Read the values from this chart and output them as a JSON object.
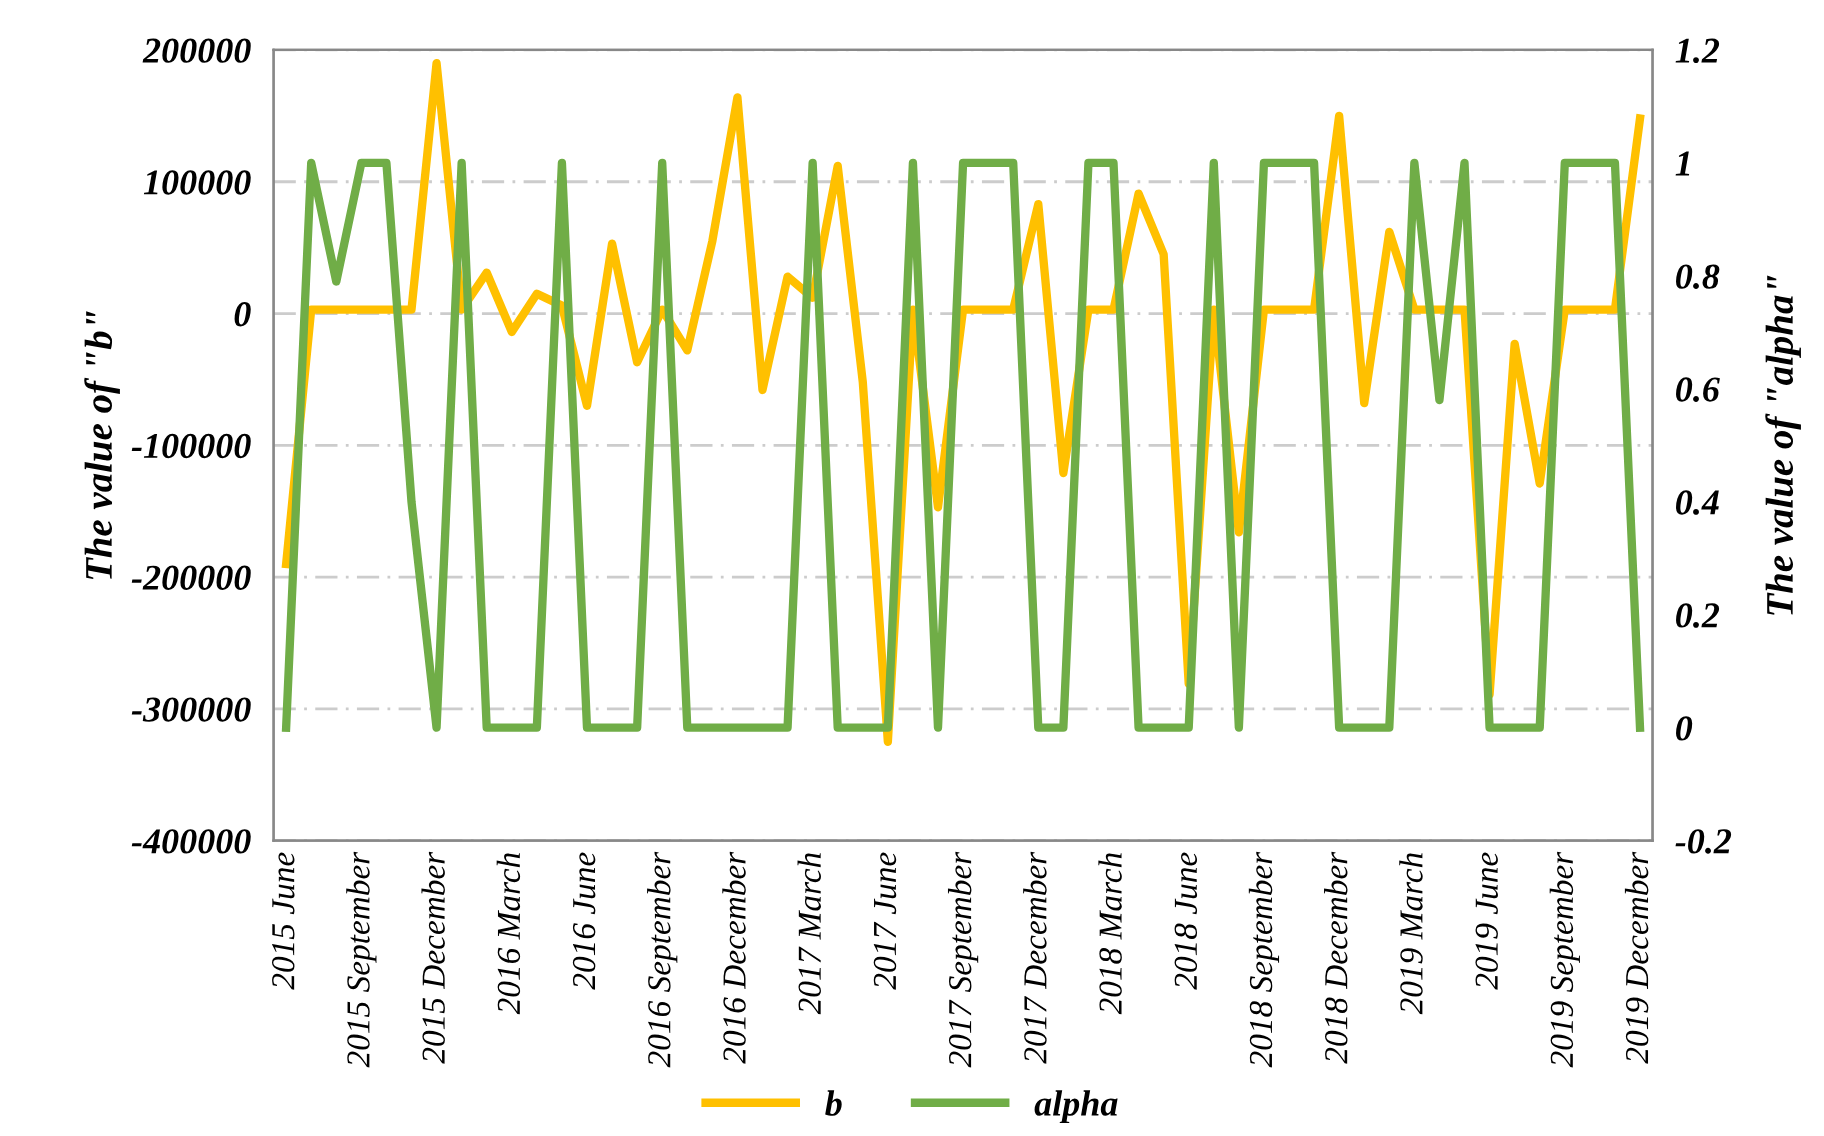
{
  "chart_data": {
    "type": "line",
    "ylabel": "The value of \"b\"",
    "y2label": "The value of \"alpha\"",
    "categories": [
      "2015 June",
      null,
      null,
      "2015 September",
      null,
      null,
      "2015 December",
      null,
      null,
      "2016 March",
      null,
      null,
      "2016 June",
      null,
      null,
      "2016 September",
      null,
      null,
      "2016 December",
      null,
      null,
      "2017 March",
      null,
      null,
      "2017 June",
      null,
      null,
      "2017 September",
      null,
      null,
      "2017 December",
      null,
      null,
      "2018 March",
      null,
      null,
      "2018 June",
      null,
      null,
      "2018 September",
      null,
      null,
      "2018 December",
      null,
      null,
      "2019 March",
      null,
      null,
      "2019 June",
      null,
      null,
      "2019 September",
      null,
      null,
      "2019 December"
    ],
    "series": [
      {
        "name": "b",
        "color": "#ffc000",
        "values": [
          -190000,
          3000,
          3000,
          3000,
          3000,
          3000,
          190000,
          3000,
          31000,
          -14000,
          15000,
          6000,
          -70000,
          53000,
          -37000,
          3000,
          -28000,
          55000,
          164000,
          -58000,
          28000,
          12000,
          112000,
          -52000,
          -325000,
          3000,
          -147000,
          3000,
          3000,
          3000,
          83000,
          -121000,
          3000,
          3000,
          91000,
          45000,
          -281000,
          3000,
          -166000,
          3000,
          3000,
          3000,
          150000,
          -68000,
          62000,
          3000,
          3000,
          3000,
          -289000,
          -23000,
          -129000,
          3000,
          3000,
          3000,
          148000
        ]
      },
      {
        "name": "alpha",
        "color": "#70ad47",
        "axis": "y2",
        "values": [
          0,
          1,
          0.79,
          1,
          1,
          0.4,
          0,
          1,
          0,
          0,
          0,
          1,
          0,
          0,
          0,
          1,
          0,
          0,
          0,
          0,
          0,
          1,
          0,
          0,
          0,
          1,
          0,
          1,
          1,
          1,
          0,
          0,
          1,
          1,
          0,
          0,
          0,
          1,
          0,
          1,
          1,
          1,
          0,
          0,
          0,
          1,
          0.58,
          1,
          0,
          0,
          0,
          1,
          1,
          1,
          0
        ]
      }
    ],
    "ylim": [
      -400000,
      200000
    ],
    "yticks": [
      -400000,
      -300000,
      -200000,
      -100000,
      0,
      100000,
      200000
    ],
    "y2lim": [
      -0.2,
      1.2
    ],
    "y2ticks": [
      -0.2,
      0,
      0.2,
      0.4,
      0.6,
      0.8,
      1,
      1.2
    ],
    "grid": "y",
    "legend": "bottom",
    "marker": "none",
    "line_style": "solid"
  }
}
